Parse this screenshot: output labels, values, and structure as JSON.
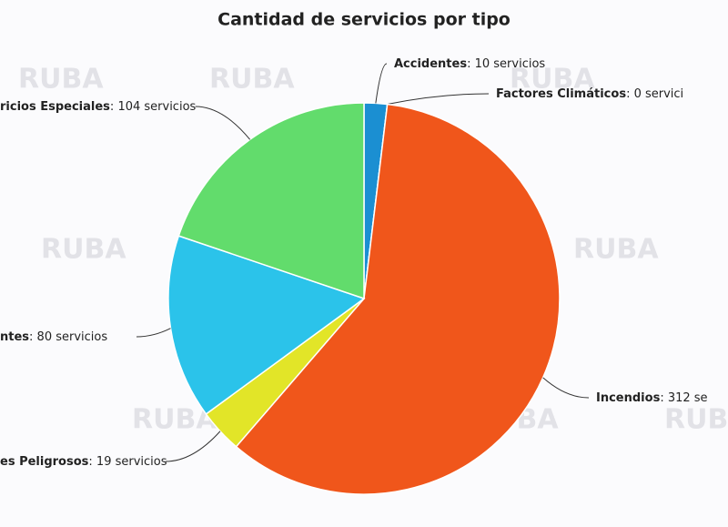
{
  "chart_data": {
    "type": "pie",
    "title": "Cantidad de servicios por tipo",
    "watermark": "RUBA",
    "categories": [
      "Accidentes",
      "Factores Climáticos",
      "Incendios",
      "es Peligrosos",
      "ntes",
      "ricios Especiales"
    ],
    "values": [
      10,
      0,
      312,
      19,
      80,
      104
    ],
    "value_labels": [
      "10 servicios",
      "0 servici",
      "312 se",
      "19 servicios",
      "80 servicios",
      "104 servicios"
    ],
    "colors": [
      "#1b8fd2",
      "#9b59b6",
      "#f0561b",
      "#e2e528",
      "#2bc3ea",
      "#62dc6c"
    ]
  }
}
